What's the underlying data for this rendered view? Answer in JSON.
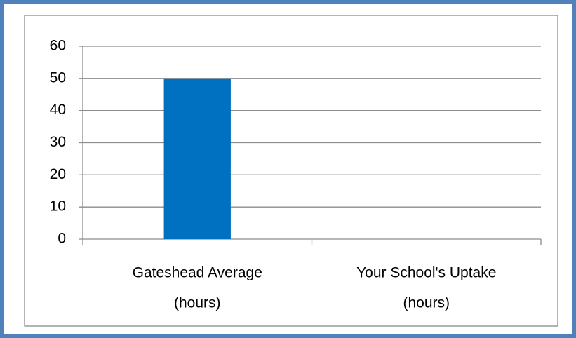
{
  "chart_data": {
    "type": "bar",
    "categories": [
      [
        "Gateshead Average",
        "(hours)"
      ],
      [
        "Your School's Uptake",
        "(hours)"
      ]
    ],
    "values": [
      50,
      0
    ],
    "color": "#0070c0",
    "ylim": [
      0,
      60
    ],
    "yticks": [
      0,
      10,
      20,
      30,
      40,
      50,
      60
    ],
    "grid": true
  }
}
